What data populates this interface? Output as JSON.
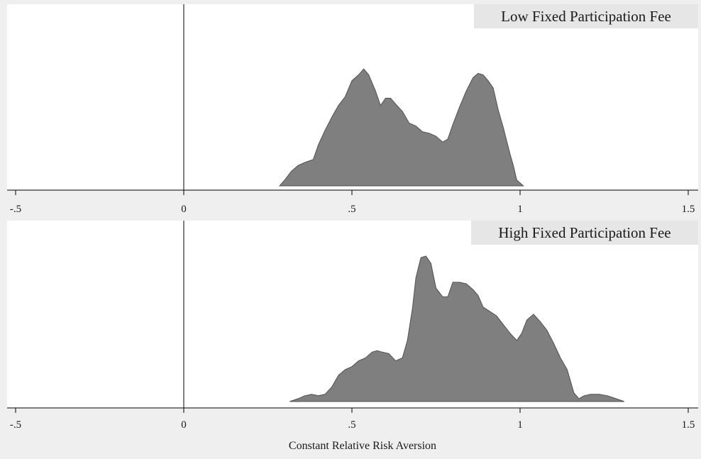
{
  "chart_data": [
    {
      "type": "area",
      "title": "Low Fixed Participation Fee",
      "xlim": [
        -0.5,
        1.5
      ],
      "ylim": [
        0,
        1.0
      ],
      "xticks": [
        -0.5,
        0,
        0.5,
        1,
        1.5
      ],
      "xtick_labels": [
        "-.5",
        "0",
        ".5",
        "1",
        "1.5"
      ],
      "reference_line_x": 0,
      "grid": false,
      "fill_color": "#7f7f7f",
      "x": [
        0.285,
        0.3,
        0.32,
        0.34,
        0.36,
        0.385,
        0.4,
        0.42,
        0.44,
        0.46,
        0.48,
        0.5,
        0.52,
        0.535,
        0.55,
        0.57,
        0.585,
        0.6,
        0.615,
        0.63,
        0.65,
        0.67,
        0.69,
        0.71,
        0.73,
        0.75,
        0.77,
        0.785,
        0.8,
        0.82,
        0.84,
        0.86,
        0.875,
        0.89,
        0.905,
        0.92,
        0.935,
        0.95,
        0.97,
        0.98,
        0.99,
        1.01
      ],
      "y": [
        0.0,
        0.04,
        0.1,
        0.14,
        0.16,
        0.18,
        0.28,
        0.38,
        0.47,
        0.55,
        0.61,
        0.72,
        0.76,
        0.8,
        0.76,
        0.65,
        0.55,
        0.6,
        0.6,
        0.56,
        0.51,
        0.43,
        0.41,
        0.37,
        0.36,
        0.34,
        0.3,
        0.32,
        0.42,
        0.54,
        0.65,
        0.74,
        0.77,
        0.76,
        0.72,
        0.67,
        0.52,
        0.4,
        0.22,
        0.14,
        0.04,
        0.0
      ]
    },
    {
      "type": "area",
      "title": "High Fixed Participation Fee",
      "xlim": [
        -0.5,
        1.5
      ],
      "ylim": [
        0,
        1.0
      ],
      "xticks": [
        -0.5,
        0,
        0.5,
        1,
        1.5
      ],
      "xtick_labels": [
        "-.5",
        "0",
        ".5",
        "1",
        "1.5"
      ],
      "reference_line_x": 0,
      "grid": false,
      "fill_color": "#7f7f7f",
      "xlabel": "Constant Relative Risk Aversion",
      "x": [
        0.315,
        0.34,
        0.36,
        0.38,
        0.4,
        0.42,
        0.44,
        0.46,
        0.48,
        0.5,
        0.52,
        0.54,
        0.56,
        0.575,
        0.59,
        0.61,
        0.63,
        0.65,
        0.665,
        0.68,
        0.69,
        0.705,
        0.72,
        0.735,
        0.75,
        0.77,
        0.785,
        0.8,
        0.82,
        0.84,
        0.86,
        0.875,
        0.89,
        0.91,
        0.93,
        0.95,
        0.97,
        0.99,
        1.005,
        1.02,
        1.04,
        1.06,
        1.08,
        1.1,
        1.12,
        1.14,
        1.16,
        1.175,
        1.19,
        1.21,
        1.235,
        1.26,
        1.285,
        1.31
      ],
      "y": [
        0.0,
        0.02,
        0.04,
        0.05,
        0.04,
        0.05,
        0.1,
        0.18,
        0.22,
        0.24,
        0.28,
        0.3,
        0.34,
        0.35,
        0.34,
        0.33,
        0.28,
        0.3,
        0.42,
        0.64,
        0.85,
        0.99,
        1.0,
        0.95,
        0.78,
        0.72,
        0.72,
        0.82,
        0.82,
        0.81,
        0.77,
        0.73,
        0.65,
        0.62,
        0.59,
        0.53,
        0.47,
        0.42,
        0.47,
        0.56,
        0.6,
        0.55,
        0.49,
        0.4,
        0.3,
        0.22,
        0.06,
        0.02,
        0.04,
        0.05,
        0.05,
        0.04,
        0.02,
        0.0
      ]
    }
  ]
}
